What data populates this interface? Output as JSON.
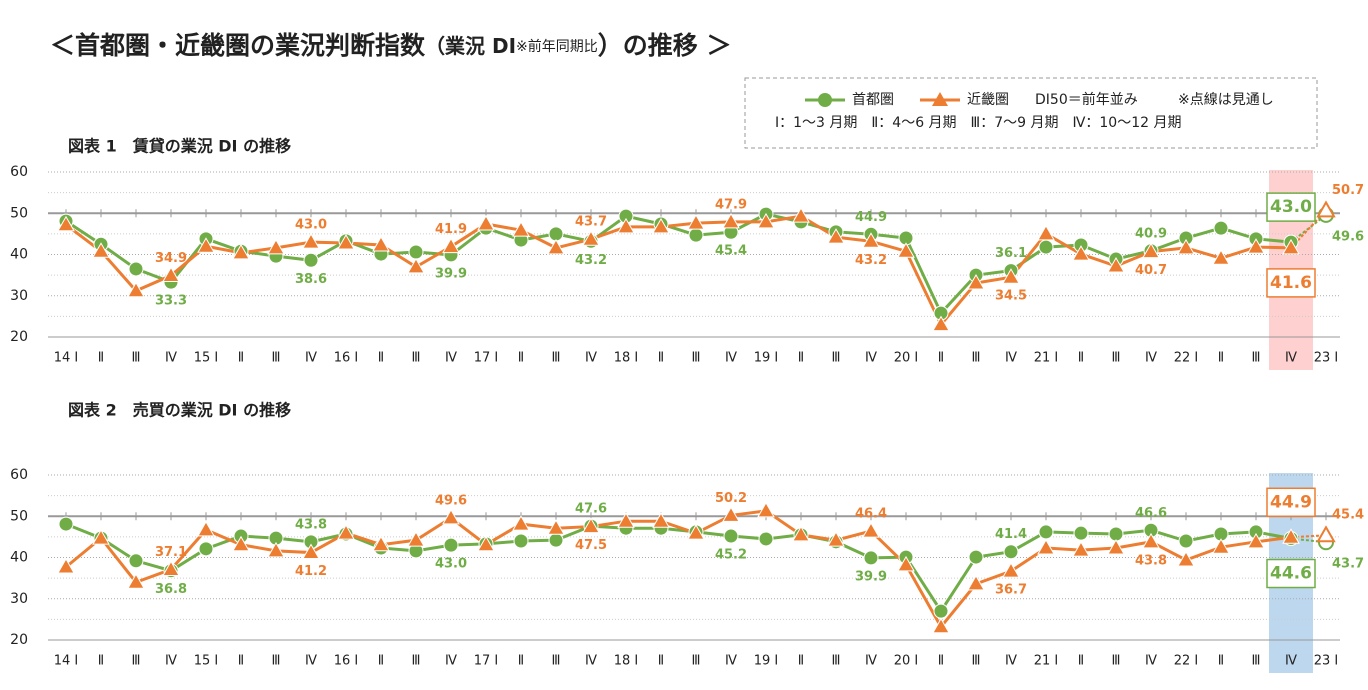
{
  "page": {
    "title_parts": [
      "＜首都圏・近畿圏の業況判断指数",
      "（業況 DI",
      "※前年同期比",
      "）の推移 ＞"
    ],
    "legend_note": "※点線は見通し",
    "legend_quarters": "Ⅰ：1～3 月期　Ⅱ：4～6 月期　Ⅲ：7～9 月期　Ⅳ：10～12 月期"
  },
  "chart_data": [
    {
      "type": "line",
      "title": "図表 1　賃貸の業況 DI の推移",
      "categories": [
        "14 Ⅰ",
        "Ⅱ",
        "Ⅲ",
        "Ⅳ",
        "15 Ⅰ",
        "Ⅱ",
        "Ⅲ",
        "Ⅳ",
        "16 Ⅰ",
        "Ⅱ",
        "Ⅲ",
        "Ⅳ",
        "17 Ⅰ",
        "Ⅱ",
        "Ⅲ",
        "Ⅳ",
        "18 Ⅰ",
        "Ⅱ",
        "Ⅲ",
        "Ⅳ",
        "19 Ⅰ",
        "Ⅱ",
        "Ⅲ",
        "Ⅳ",
        "20 Ⅰ",
        "Ⅱ",
        "Ⅲ",
        "Ⅳ",
        "21 Ⅰ",
        "Ⅱ",
        "Ⅲ",
        "Ⅳ",
        "22 Ⅰ",
        "Ⅱ",
        "Ⅲ",
        "Ⅳ",
        "23 Ⅰ"
      ],
      "series": [
        {
          "name": "首都圏",
          "color": "#70ad47",
          "marker": "circle",
          "values": [
            48.1,
            42.5,
            36.5,
            33.3,
            43.8,
            40.8,
            39.6,
            38.6,
            43.3,
            40.1,
            40.6,
            39.9,
            46.4,
            43.5,
            45,
            43.2,
            49.3,
            47.4,
            44.7,
            45.4,
            49.8,
            47.9,
            45.5,
            44.9,
            44,
            25.8,
            35,
            36.1,
            41.8,
            42.3,
            38.9,
            40.9,
            44,
            46.4,
            43.8,
            43,
            49.6
          ],
          "value_labels": [
            null,
            null,
            null,
            "33.3",
            null,
            null,
            null,
            "38.6",
            null,
            null,
            null,
            "39.9",
            null,
            null,
            null,
            "43.2",
            null,
            null,
            null,
            "45.4",
            null,
            null,
            null,
            "44.9",
            null,
            null,
            null,
            "36.1",
            null,
            null,
            null,
            "40.9",
            null,
            null,
            null,
            "43.0",
            "49.6"
          ]
        },
        {
          "name": "近畿圏",
          "color": "#ed7d31",
          "marker": "triangle",
          "values": [
            47.2,
            40.8,
            31.2,
            34.9,
            42,
            40.4,
            41.6,
            43,
            42.8,
            42.3,
            37,
            41.9,
            47.4,
            45.9,
            41.6,
            43.7,
            46.7,
            46.7,
            47.6,
            47.9,
            47.9,
            49.3,
            44.2,
            43.2,
            40.8,
            23,
            33.1,
            34.5,
            45,
            40.1,
            37.2,
            40.7,
            41.6,
            39.1,
            41.8,
            41.6,
            50.7
          ],
          "value_labels": [
            null,
            null,
            null,
            "34.9",
            null,
            null,
            null,
            "43.0",
            null,
            null,
            null,
            "41.9",
            null,
            null,
            null,
            "43.7",
            null,
            null,
            null,
            "47.9",
            null,
            null,
            null,
            "43.2",
            null,
            null,
            null,
            "34.5",
            null,
            null,
            null,
            "40.7",
            null,
            null,
            null,
            "41.6",
            "50.7"
          ]
        }
      ],
      "ylim": [
        20,
        60
      ],
      "yticks": [
        20,
        30,
        40,
        50,
        60
      ],
      "grid": true,
      "reference_line": {
        "value": 50,
        "label": "DI50＝前年並み"
      },
      "highlight": {
        "index": 35,
        "color": "#ffd0d0"
      },
      "dashed_last_segment": true
    },
    {
      "type": "line",
      "title": "図表 2　売買の業況 DI の推移",
      "categories": [
        "14 Ⅰ",
        "Ⅱ",
        "Ⅲ",
        "Ⅳ",
        "15 Ⅰ",
        "Ⅱ",
        "Ⅲ",
        "Ⅳ",
        "16 Ⅰ",
        "Ⅱ",
        "Ⅲ",
        "Ⅳ",
        "17 Ⅰ",
        "Ⅱ",
        "Ⅲ",
        "Ⅳ",
        "18 Ⅰ",
        "Ⅱ",
        "Ⅲ",
        "Ⅳ",
        "19 Ⅰ",
        "Ⅱ",
        "Ⅲ",
        "Ⅳ",
        "20 Ⅰ",
        "Ⅱ",
        "Ⅲ",
        "Ⅳ",
        "21 Ⅰ",
        "Ⅱ",
        "Ⅲ",
        "Ⅳ",
        "22 Ⅰ",
        "Ⅱ",
        "Ⅲ",
        "Ⅳ",
        "23 Ⅰ"
      ],
      "series": [
        {
          "color": "#70ad47",
          "marker": "circle",
          "values": [
            48.1,
            44.7,
            39.2,
            36.8,
            42.1,
            45.2,
            44.7,
            43.8,
            45.7,
            42.3,
            41.6,
            43,
            43.3,
            44,
            44.2,
            47.6,
            47.1,
            47.1,
            46.2,
            45.2,
            44.5,
            45.5,
            43.8,
            39.9,
            40.1,
            27,
            40.1,
            41.4,
            46.2,
            45.9,
            45.7,
            46.6,
            44,
            45.7,
            46.2,
            44.6,
            43.7
          ],
          "value_labels": [
            null,
            null,
            null,
            "36.8",
            null,
            null,
            null,
            "43.8",
            null,
            null,
            null,
            "43.0",
            null,
            null,
            null,
            "47.6",
            null,
            null,
            null,
            "45.2",
            null,
            null,
            null,
            "39.9",
            null,
            null,
            null,
            "41.4",
            null,
            null,
            null,
            "46.6",
            null,
            null,
            null,
            "44.6",
            "43.7"
          ]
        },
        {
          "color": "#ed7d31",
          "marker": "triangle",
          "values": [
            37.7,
            44.7,
            34,
            37.1,
            46.7,
            43.1,
            41.6,
            41.2,
            45.9,
            43.1,
            44.2,
            49.6,
            43.1,
            48.1,
            47.1,
            47.5,
            48.8,
            48.8,
            45.9,
            50.2,
            51.3,
            45.5,
            44.2,
            46.4,
            38.2,
            23.2,
            33.6,
            36.7,
            42.3,
            41.8,
            42.3,
            43.8,
            39.4,
            42.5,
            43.8,
            44.9,
            45.4
          ],
          "value_labels": [
            null,
            null,
            null,
            "37.1",
            null,
            null,
            null,
            "41.2",
            null,
            null,
            null,
            "49.6",
            null,
            null,
            null,
            "47.5",
            null,
            null,
            null,
            "50.2",
            null,
            null,
            null,
            "46.4",
            null,
            null,
            null,
            "36.7",
            null,
            null,
            null,
            "43.8",
            null,
            null,
            null,
            "44.9",
            "45.4"
          ]
        }
      ],
      "ylim": [
        20,
        60
      ],
      "yticks": [
        20,
        30,
        40,
        50,
        60
      ],
      "grid": true,
      "reference_line": {
        "value": 50
      },
      "highlight": {
        "index": 35,
        "color": "#bdd7ee"
      },
      "dashed_last_segment": true
    }
  ]
}
